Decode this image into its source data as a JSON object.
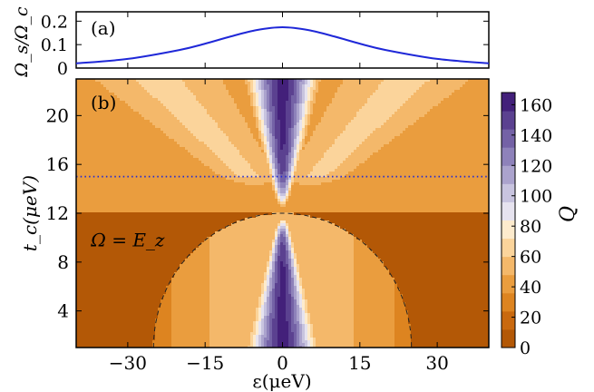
{
  "chart_data": [
    {
      "panel_label": "(a)",
      "type": "line",
      "ylabel": "Ω_s/Ω_c",
      "xlim": [
        -40,
        40
      ],
      "ylim": [
        0,
        0.24
      ],
      "yticks": [
        {
          "value": 0,
          "label": "0"
        },
        {
          "value": 0.1,
          "label": "0.1"
        },
        {
          "value": 0.2,
          "label": "0.2"
        }
      ],
      "grid": false,
      "series": [
        {
          "color": "#1f28d8",
          "x": [
            -40,
            -30,
            -20,
            -15,
            -10,
            -5,
            0,
            5,
            10,
            15,
            20,
            30,
            40
          ],
          "y": [
            0.02,
            0.039,
            0.077,
            0.104,
            0.135,
            0.162,
            0.174,
            0.162,
            0.135,
            0.104,
            0.077,
            0.039,
            0.02
          ]
        }
      ]
    },
    {
      "panel_label": "(b)",
      "type": "heatmap",
      "xlabel": "ε(μeV)",
      "ylabel": "t_c(μeV)",
      "xlim": [
        -40,
        40
      ],
      "ylim": [
        1,
        23
      ],
      "xticks": [
        {
          "value": -30,
          "label": "−30"
        },
        {
          "value": -15,
          "label": "−15"
        },
        {
          "value": 0,
          "label": "0"
        },
        {
          "value": 15,
          "label": "15"
        },
        {
          "value": 30,
          "label": "30"
        }
      ],
      "yticks": [
        {
          "value": 4,
          "label": "4"
        },
        {
          "value": 8,
          "label": "8"
        },
        {
          "value": 12,
          "label": "12"
        },
        {
          "value": 16,
          "label": "16"
        },
        {
          "value": 20,
          "label": "20"
        }
      ],
      "grid": false,
      "colorbar": {
        "label": "Q",
        "range": [
          0,
          168
        ],
        "ticks": [
          0,
          20,
          40,
          60,
          80,
          100,
          120,
          140,
          160
        ],
        "colors": [
          "#b35806",
          "#c9690f",
          "#dd8420",
          "#ea9d3e",
          "#f4b86a",
          "#fbd49b",
          "#fdebcd",
          "#e6e3ef",
          "#c8c4df",
          "#aba3cd",
          "#8e82ba",
          "#7462a6",
          "#5b4190",
          "#43207a"
        ]
      },
      "horizontal_line": {
        "y": 15,
        "color": "#1f28d8",
        "style": "dotted"
      },
      "annotation": {
        "text": "Ω = E_z",
        "x": -30,
        "y": 9.3
      },
      "dashed_curve": {
        "label": "Ω = E_z",
        "radius": 25,
        "y_center": 1,
        "y_peak": 12
      }
    }
  ]
}
